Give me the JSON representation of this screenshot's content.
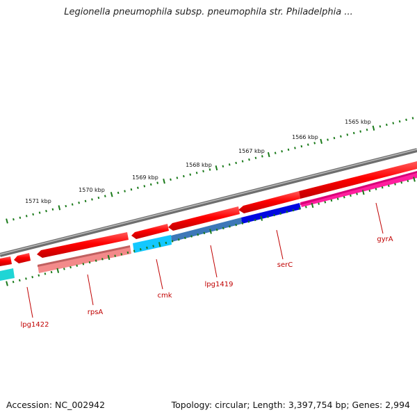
{
  "title": "Legionella pneumophila subsp. pneumophila str. Philadelphia ...",
  "footer": {
    "accession": "Accession: NC_002942",
    "info": "Topology: circular; Length: 3,397,754 bp; Genes: 2,994"
  },
  "ruler": {
    "labels": [
      "1565 kbp",
      "1566 kbp",
      "1567 kbp",
      "1568 kbp",
      "1569 kbp",
      "1570 kbp",
      "1571 kbp"
    ]
  },
  "genes": [
    {
      "name": "gyrA",
      "label": "gyrA"
    },
    {
      "name": "serC",
      "label": "serC"
    },
    {
      "name": "lpg1419",
      "label": "lpg1419"
    },
    {
      "name": "cmk",
      "label": "cmk"
    },
    {
      "name": "rpsA",
      "label": "rpsA"
    },
    {
      "name": "lpg1422",
      "label": "lpg1422"
    }
  ],
  "colors": {
    "cds": "#ff0000",
    "backbone": "#7f7f7f",
    "tick": "#1a7a1a",
    "label": "#c00000"
  }
}
